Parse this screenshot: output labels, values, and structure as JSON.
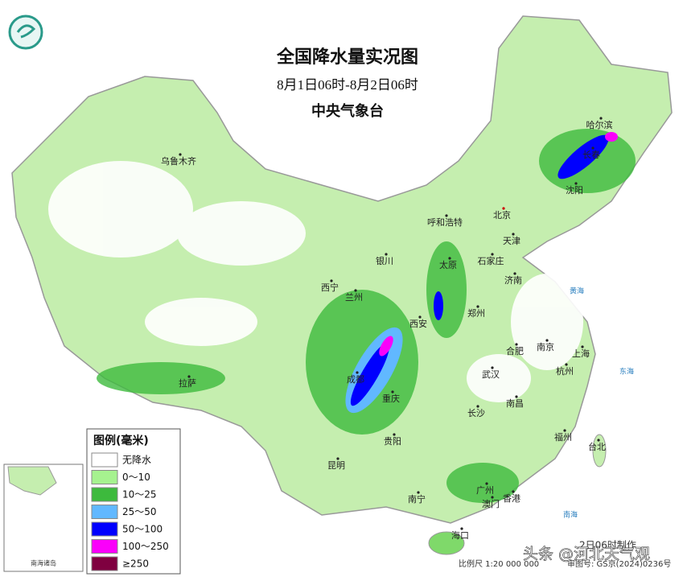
{
  "header": {
    "title": "全国降水量实况图",
    "subtitle": "8月1日06时-8月2日06时",
    "agency": "中央气象台"
  },
  "cities": [
    "乌鲁木齐",
    "哈尔滨",
    "长春",
    "沈阳",
    "呼和浩特",
    "北京",
    "天津",
    "银川",
    "太原",
    "石家庄",
    "济南",
    "西宁",
    "兰州",
    "郑州",
    "西安",
    "南京",
    "合肥",
    "上海",
    "成都",
    "武汉",
    "杭州",
    "拉萨",
    "重庆",
    "南昌",
    "长沙",
    "福州",
    "贵阳",
    "台北",
    "昆明",
    "南宁",
    "广州",
    "香港",
    "澳门",
    "海口"
  ],
  "seas": [
    "黄海",
    "东海",
    "南海"
  ],
  "inset": {
    "label": "南海诸岛"
  },
  "legend": {
    "title": "图例(毫米)",
    "items": [
      {
        "label": "无降水",
        "color": "#ffffff"
      },
      {
        "label": "0～10",
        "color": "#a6f28f"
      },
      {
        "label": "10～25",
        "color": "#3dba3d"
      },
      {
        "label": "25～50",
        "color": "#61b8ff"
      },
      {
        "label": "50～100",
        "color": "#0000fe"
      },
      {
        "label": "100～250",
        "color": "#fa00fa"
      },
      {
        "label": "≥250",
        "color": "#7f0040"
      }
    ]
  },
  "footer": {
    "scale": "比例尺 1:20 000 000",
    "approval": "审图号: GS京(2024)0236号",
    "made": "2日06时制作"
  },
  "watermark": "头条 @河北天气观"
}
